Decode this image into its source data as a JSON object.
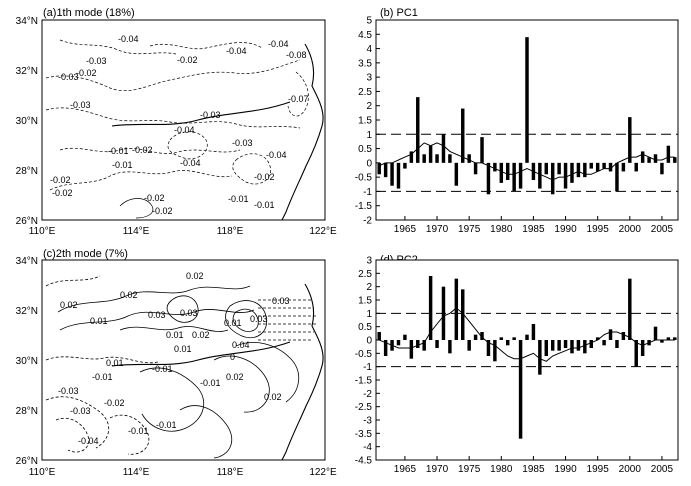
{
  "panels": {
    "a": {
      "title": "(a)1th mode (18%)",
      "lat_labels": [
        "26°N",
        "28°N",
        "30°N",
        "32°N",
        "34°N"
      ],
      "lon_labels": [
        "110°E",
        "114°E",
        "118°E",
        "122°E"
      ],
      "contour_labels": [
        "-0.04",
        "-0.03",
        "-0.02",
        "-0.03",
        "-0.03",
        "-0.02",
        "-0.04",
        "-0.04",
        "-0.03",
        "-0.01",
        "-0.02",
        "-0.02",
        "-0.04",
        "-0.03",
        "-0.04",
        "-0.02",
        "-0.01",
        "-0.02",
        "-0.02",
        "-0.01",
        "-0.01",
        "-0.02",
        "-0.07",
        "-0.08",
        "-0.04"
      ]
    },
    "c": {
      "title": "(c)2th mode (7%)",
      "lat_labels": [
        "26°N",
        "28°N",
        "30°N",
        "32°N",
        "34°N"
      ],
      "lon_labels": [
        "110°E",
        "114°E",
        "118°E",
        "122°E"
      ],
      "contour_labels": [
        "0.02",
        "0.02",
        "0.01",
        "0.03",
        "0.03",
        "0.02",
        "0.01",
        "0.02",
        "0.03",
        "0.01",
        "0.01",
        "0.04",
        "-0.01",
        "0",
        "-0.01",
        "-0.03",
        "-0.02",
        "-0.01",
        "-0.03",
        "-0.04",
        "-0.01",
        "-0.01",
        "0.02",
        "0.02",
        "0.03",
        "0.01"
      ]
    }
  },
  "chart_data": [
    {
      "type": "bar",
      "title": "(b) PC1",
      "x": [
        1961,
        1962,
        1963,
        1964,
        1965,
        1966,
        1967,
        1968,
        1969,
        1970,
        1971,
        1972,
        1973,
        1974,
        1975,
        1976,
        1977,
        1978,
        1979,
        1980,
        1981,
        1982,
        1983,
        1984,
        1985,
        1986,
        1987,
        1988,
        1989,
        1990,
        1991,
        1992,
        1993,
        1994,
        1995,
        1996,
        1997,
        1998,
        1999,
        2000,
        2001,
        2002,
        2003,
        2004,
        2005,
        2006,
        2007
      ],
      "values": [
        -0.4,
        -0.5,
        -0.8,
        -0.9,
        -0.2,
        0.4,
        2.3,
        0.3,
        0.6,
        0.3,
        1.0,
        0.3,
        -0.8,
        1.9,
        0.3,
        -0.4,
        0.9,
        -1.1,
        -0.3,
        -0.7,
        -0.6,
        -1.0,
        -0.9,
        4.4,
        -0.6,
        -0.9,
        -0.4,
        -1.1,
        -0.4,
        -0.9,
        -0.7,
        -0.5,
        -0.5,
        -0.2,
        -0.3,
        -0.2,
        -0.3,
        -1.0,
        -0.3,
        1.6,
        -0.3,
        0.4,
        0.2,
        0.3,
        -0.4,
        0.6,
        0.2
      ],
      "line": [
        -0.1,
        0.0,
        0.0,
        0.1,
        0.2,
        0.3,
        0.5,
        0.7,
        0.6,
        0.7,
        0.6,
        0.4,
        0.3,
        0.2,
        0.1,
        0.0,
        0.0,
        -0.1,
        -0.2,
        -0.3,
        -0.4,
        -0.4,
        -0.3,
        -0.2,
        -0.3,
        -0.4,
        -0.5,
        -0.6,
        -0.5,
        -0.5,
        -0.4,
        -0.3,
        -0.4,
        -0.4,
        -0.3,
        -0.2,
        -0.2,
        0.0,
        0.1,
        0.2,
        0.2,
        0.3,
        0.2,
        0.1,
        0.1,
        0.2,
        0.2
      ],
      "xticks": [
        1965,
        1970,
        1975,
        1980,
        1985,
        1990,
        1995,
        2000,
        2005
      ],
      "yticks": [
        -2,
        -1.5,
        -1,
        -0.5,
        0,
        0.5,
        1,
        1.5,
        2,
        2.5,
        3,
        3.5,
        4,
        4.5,
        5
      ],
      "ytick_labels": [
        "-2",
        "-1.5",
        "-1",
        "-0.5",
        "0",
        "0.5",
        "1",
        "1.5",
        "2",
        "2.5",
        "3",
        "3.5",
        "4",
        "4.5",
        "5"
      ],
      "ylim": [
        -2,
        5
      ],
      "xlim": [
        1961,
        2007
      ],
      "reference_lines": [
        1,
        -1
      ]
    },
    {
      "type": "bar",
      "title": "(d) PC2",
      "x": [
        1961,
        1962,
        1963,
        1964,
        1965,
        1966,
        1967,
        1968,
        1969,
        1970,
        1971,
        1972,
        1973,
        1974,
        1975,
        1976,
        1977,
        1978,
        1979,
        1980,
        1981,
        1982,
        1983,
        1984,
        1985,
        1986,
        1987,
        1988,
        1989,
        1990,
        1991,
        1992,
        1993,
        1994,
        1995,
        1996,
        1997,
        1998,
        1999,
        2000,
        2001,
        2002,
        2003,
        2004,
        2005,
        2006,
        2007
      ],
      "values": [
        0.3,
        -0.6,
        -0.4,
        -0.2,
        0.2,
        -0.7,
        -0.3,
        -0.4,
        2.4,
        -0.3,
        2.0,
        -0.5,
        2.3,
        1.9,
        -0.4,
        0.2,
        0.3,
        -0.6,
        -0.8,
        0.1,
        -0.2,
        0.1,
        -3.7,
        0.2,
        0.6,
        -1.3,
        -0.6,
        -0.4,
        -0.4,
        -0.3,
        -0.5,
        -0.4,
        -0.5,
        -0.3,
        0.1,
        -0.2,
        0.4,
        -0.3,
        0.3,
        2.3,
        -1.0,
        -0.6,
        -0.2,
        0.5,
        -0.1,
        0.1,
        0.1
      ],
      "line": [
        0.0,
        -0.1,
        -0.2,
        -0.3,
        -0.3,
        -0.3,
        -0.2,
        -0.1,
        0.3,
        0.6,
        0.9,
        1.0,
        1.2,
        1.0,
        0.7,
        0.4,
        0.1,
        -0.1,
        -0.2,
        -0.4,
        -0.6,
        -0.7,
        -0.7,
        -0.6,
        -0.5,
        -0.7,
        -0.8,
        -0.6,
        -0.5,
        -0.4,
        -0.3,
        -0.3,
        -0.2,
        -0.1,
        0.0,
        0.2,
        0.3,
        0.3,
        0.2,
        0.1,
        -0.1,
        -0.2,
        -0.1,
        0.0,
        0.0,
        0.0,
        0.0
      ],
      "xticks": [
        1965,
        1970,
        1975,
        1980,
        1985,
        1990,
        1995,
        2000,
        2005
      ],
      "yticks": [
        -4.5,
        -4,
        -3.5,
        -3,
        -2.5,
        -2,
        -1.5,
        -1,
        -0.5,
        0,
        0.5,
        1,
        1.5,
        2,
        2.5,
        3
      ],
      "ytick_labels": [
        "-4.5",
        "-4",
        "-3.5",
        "-3",
        "-2.5",
        "-2",
        "-1.5",
        "-1",
        "-0.5",
        "0",
        "0.5",
        "1",
        "1.5",
        "2",
        "2.5",
        "3"
      ],
      "ylim": [
        -4.5,
        3
      ],
      "xlim": [
        1961,
        2007
      ],
      "reference_lines": [
        1,
        -1
      ]
    }
  ]
}
